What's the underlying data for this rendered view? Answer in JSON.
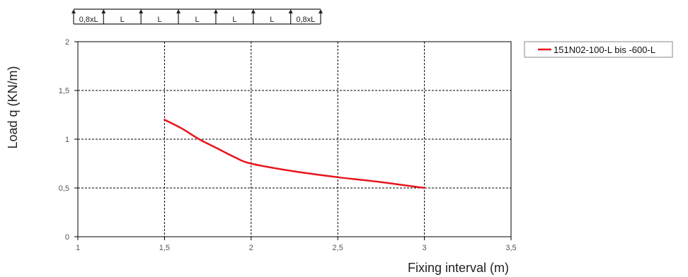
{
  "chart_data": {
    "type": "line",
    "xlabel": "Fixing interval (m)",
    "ylabel": "Load q (KN/m)",
    "xlim": [
      1,
      3.5
    ],
    "ylim": [
      0,
      2
    ],
    "xticks": [
      1,
      1.5,
      2,
      2.5,
      3,
      3.5
    ],
    "xtick_labels": [
      "1",
      "1,5",
      "2",
      "2,5",
      "3",
      "3,5"
    ],
    "yticks": [
      0,
      0.5,
      1,
      1.5,
      2
    ],
    "ytick_labels": [
      "0",
      "0,5",
      "1",
      "1,5",
      "2"
    ],
    "grid": true,
    "legend_position": "top-right outside",
    "series": [
      {
        "name": "151N02-100-L bis -600-L",
        "color": "#e8141c",
        "x": [
          1.5,
          1.6,
          1.7,
          1.8,
          1.9,
          2.0,
          2.25,
          2.5,
          2.75,
          3.0
        ],
        "y": [
          1.2,
          1.11,
          1.0,
          0.91,
          0.82,
          0.75,
          0.67,
          0.61,
          0.56,
          0.5
        ]
      }
    ]
  },
  "beam_diagram": {
    "spans": [
      "0,8xL",
      "L",
      "L",
      "L",
      "L",
      "L",
      "0,8xL"
    ]
  }
}
